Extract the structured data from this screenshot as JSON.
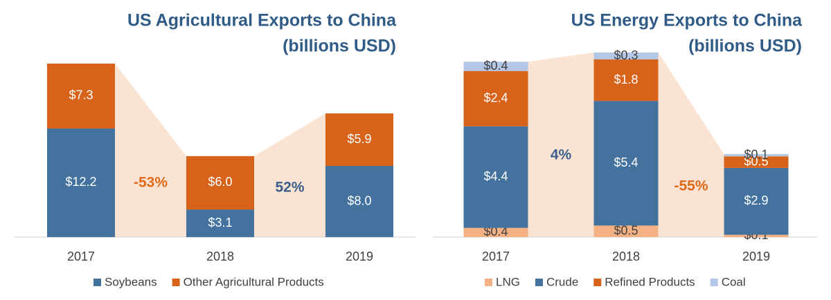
{
  "chart_data": [
    {
      "type": "bar",
      "stacked": true,
      "title": "US Agricultural Exports to China",
      "subtitle": "(billions USD)",
      "categories": [
        "2017",
        "2018",
        "2019"
      ],
      "series": [
        {
          "name": "Soybeans",
          "color": "#44729e",
          "label_color": "#ffffff",
          "values": [
            12.2,
            3.1,
            8.0
          ],
          "value_labels": [
            "$12.2",
            "$3.1",
            "$8.0"
          ]
        },
        {
          "name": "Other Agricultural Products",
          "color": "#d7631a",
          "label_color": "#ffffff",
          "values": [
            7.3,
            6.0,
            5.9
          ],
          "value_labels": [
            "$7.3",
            "$6.0",
            "$5.9"
          ]
        }
      ],
      "annotations": [
        {
          "text": "-53%",
          "color": "#e0691a"
        },
        {
          "text": "52%",
          "color": "#3a5f8a"
        }
      ]
    },
    {
      "type": "bar",
      "stacked": true,
      "title": "US Energy Exports to China",
      "subtitle": "(billions USD)",
      "categories": [
        "2017",
        "2018",
        "2019"
      ],
      "series": [
        {
          "name": "LNG",
          "color": "#f4b183",
          "label_color": "#404040",
          "values": [
            0.4,
            0.5,
            0.1
          ],
          "value_labels": [
            "$0.4",
            "$0.5",
            "$0.1"
          ]
        },
        {
          "name": "Crude",
          "color": "#44729e",
          "label_color": "#ffffff",
          "values": [
            4.4,
            5.4,
            2.9
          ],
          "value_labels": [
            "$4.4",
            "$5.4",
            "$2.9"
          ]
        },
        {
          "name": "Refined Products",
          "color": "#d7631a",
          "label_color": "#ffffff",
          "values": [
            2.4,
            1.8,
            0.5
          ],
          "value_labels": [
            "$2.4",
            "$1.8",
            "$0.5"
          ]
        },
        {
          "name": "Coal",
          "color": "#b4c7e7",
          "label_color": "#404040",
          "values": [
            0.4,
            0.3,
            0.1
          ],
          "value_labels": [
            "$0.4",
            "$0.3",
            "$0.1"
          ]
        }
      ],
      "annotations": [
        {
          "text": "4%",
          "color": "#3a5f8a"
        },
        {
          "text": "-55%",
          "color": "#e0691a"
        }
      ]
    }
  ]
}
